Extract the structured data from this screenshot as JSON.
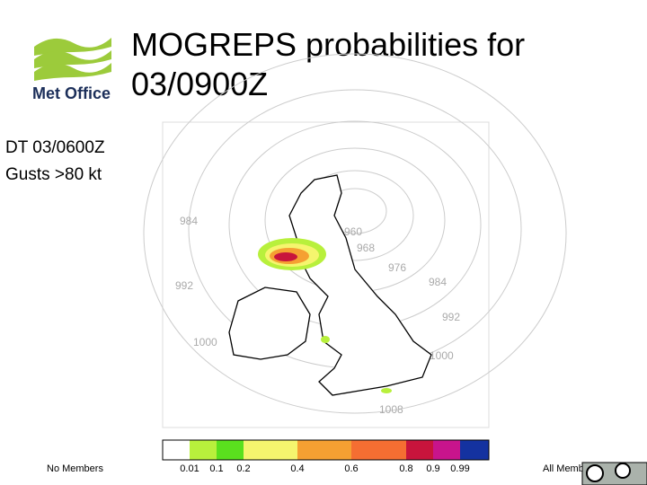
{
  "logo": {
    "text": "Met Office"
  },
  "header": {
    "title_lines": [
      "MOGREPS probabilities for",
      "03/0900Z"
    ]
  },
  "subtitle": {
    "lines": [
      "DT 03/0600Z",
      "Gusts >80 kt"
    ]
  },
  "map": {
    "contour_labels": [
      "984",
      "992",
      "1000",
      "960",
      "968",
      "976",
      "984",
      "992",
      "1000",
      "1008"
    ]
  },
  "colorbar": {
    "colors": [
      "#ffffff",
      "#b8f03c",
      "#5ae01e",
      "#f5f56e",
      "#f5a032",
      "#f56e32",
      "#c8143c",
      "#c8148c",
      "#1432a0"
    ],
    "labels": [
      "0.01",
      "0.1",
      "0.2",
      "0.4",
      "0.6",
      "0.8",
      "0.9",
      "0.99"
    ]
  },
  "footer": {
    "left": "No Members",
    "right": "All Members"
  }
}
